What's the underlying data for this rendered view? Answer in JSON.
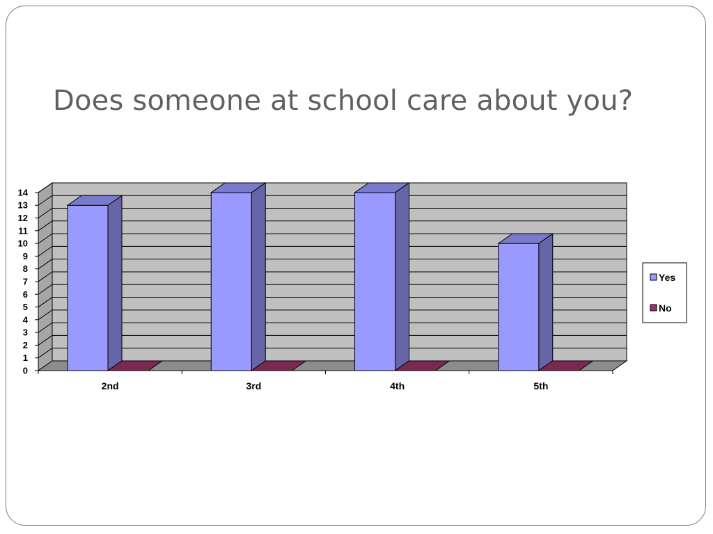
{
  "slide": {
    "title": "Does someone at school care about you?"
  },
  "chart_data": {
    "type": "bar",
    "categories": [
      "2nd",
      "3rd",
      "4th",
      "5th"
    ],
    "series": [
      {
        "name": "Yes",
        "values": [
          13,
          14,
          14,
          10
        ],
        "color": "#9999ff"
      },
      {
        "name": "No",
        "values": [
          0,
          0,
          0,
          0
        ],
        "color": "#993366"
      }
    ],
    "ylim": [
      0,
      14
    ],
    "yticks": [
      "0",
      "1",
      "2",
      "3",
      "4",
      "5",
      "6",
      "7",
      "8",
      "9",
      "10",
      "11",
      "12",
      "13",
      "14"
    ],
    "grid": true,
    "legend_position": "right",
    "style": "3d",
    "wall_color": "#c0c0c0",
    "floor_color": "#8c8c8c"
  }
}
